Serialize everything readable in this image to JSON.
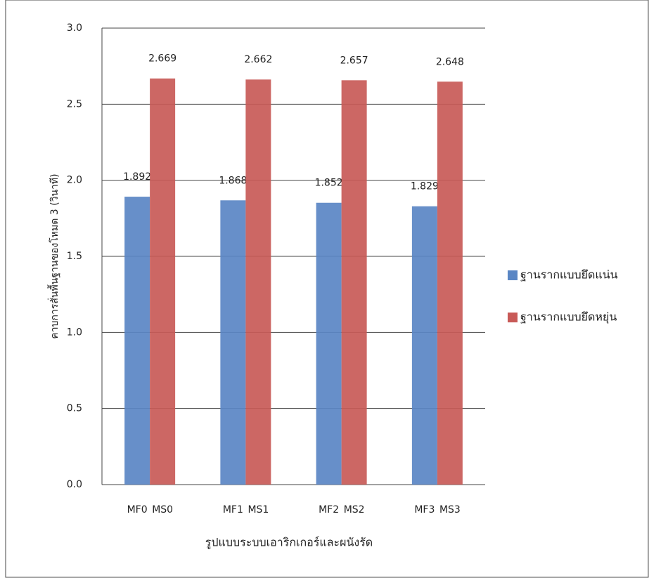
{
  "chart_data": {
    "type": "bar",
    "title_y": "คาบการสั่นพื้นฐานของโหมด 3 (วินาที)",
    "title_x": "รูปแบบระบบเอาริกเกอร์และผนังรัด",
    "ylim": [
      0,
      3
    ],
    "yticks": [
      {
        "value": 0,
        "label": "0.0"
      },
      {
        "value": 0.5,
        "label": "0.5"
      },
      {
        "value": 1,
        "label": "1.0"
      },
      {
        "value": 1.5,
        "label": "1.5"
      },
      {
        "value": 2,
        "label": "2.0"
      },
      {
        "value": 2.5,
        "label": "2.5"
      },
      {
        "value": 3,
        "label": "3.0"
      }
    ],
    "grid": true,
    "legend": "right",
    "series": [
      {
        "name": "ฐานรากแบบยึดแน่น",
        "color": "#5a86c4",
        "labels": [
          "MF0",
          "MF1",
          "MF2",
          "MF3"
        ],
        "values": [
          1.892,
          1.868,
          1.852,
          1.829
        ]
      },
      {
        "name": "ฐานรากแบบยึดหยุ่น",
        "color": "#c85a57",
        "labels": [
          "MS0",
          "MS1",
          "MS2",
          "MS3"
        ],
        "values": [
          2.669,
          2.662,
          2.657,
          2.648
        ]
      }
    ]
  }
}
